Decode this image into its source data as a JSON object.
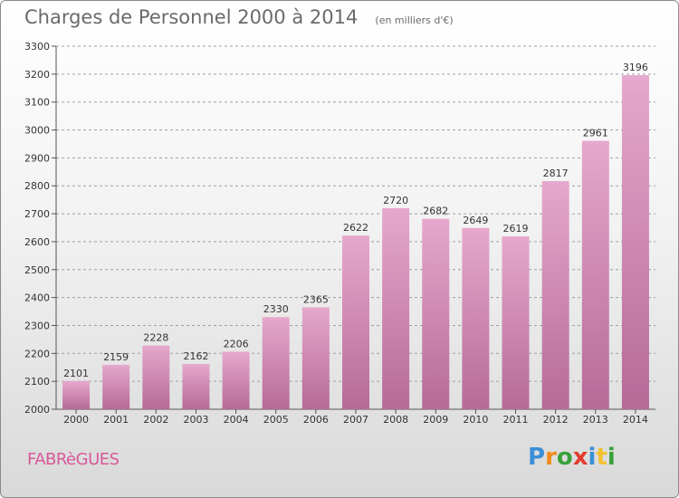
{
  "header": {
    "title": "Charges de Personnel 2000 à 2014",
    "subtitle": "(en milliers d'€)"
  },
  "footer": {
    "commune": "FABRèGUES",
    "brand": "Proxiti"
  },
  "colors": {
    "bar_top": "#e6a8cc",
    "bar_bottom": "#b56a98",
    "commune": "#d8589a"
  },
  "chart_data": {
    "type": "bar",
    "categories": [
      "2000",
      "2001",
      "2002",
      "2003",
      "2004",
      "2005",
      "2006",
      "2007",
      "2008",
      "2009",
      "2010",
      "2011",
      "2012",
      "2013",
      "2014"
    ],
    "values": [
      2101,
      2159,
      2228,
      2162,
      2206,
      2330,
      2365,
      2622,
      2720,
      2682,
      2649,
      2619,
      2817,
      2961,
      3196
    ],
    "ylim": [
      2000,
      3300
    ],
    "yticks": [
      2000,
      2100,
      2200,
      2300,
      2400,
      2500,
      2600,
      2700,
      2800,
      2900,
      3000,
      3100,
      3200,
      3300
    ],
    "grid": true,
    "data_labels": true
  }
}
